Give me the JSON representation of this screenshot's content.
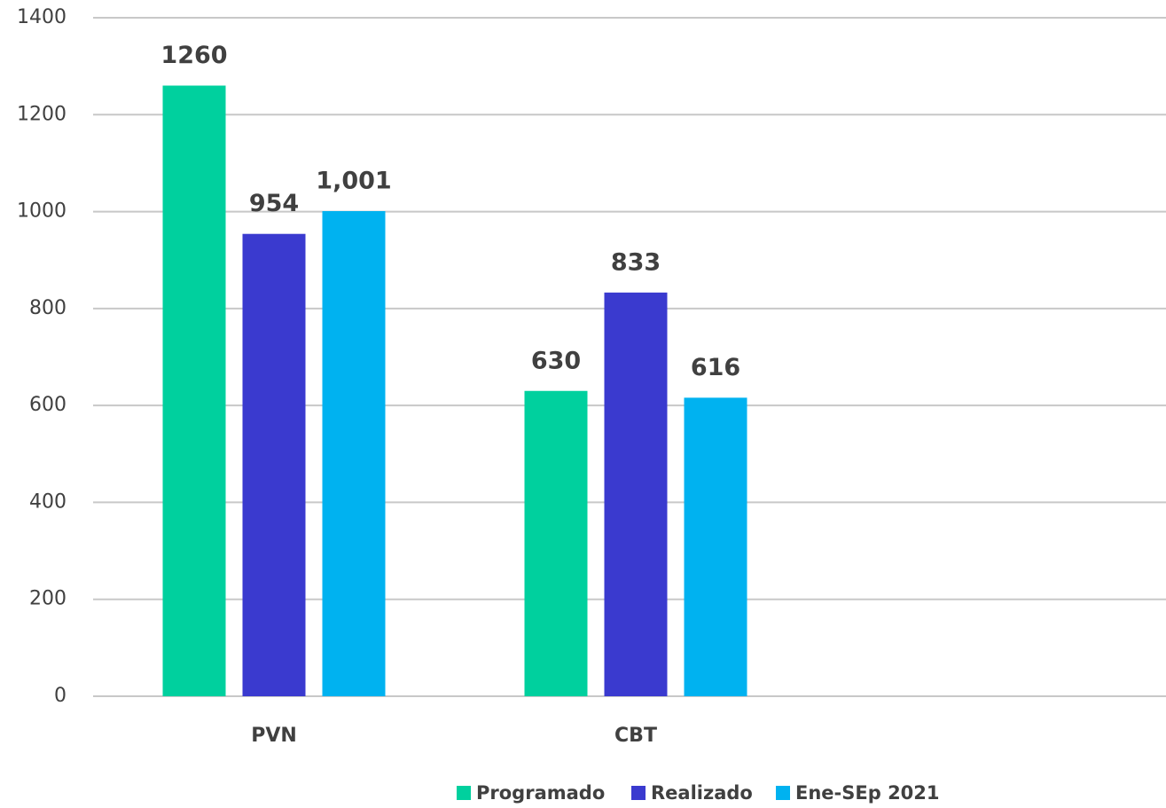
{
  "chart_data": {
    "type": "bar",
    "categories": [
      "PVN",
      "CBT"
    ],
    "series": [
      {
        "name": "Programado",
        "color": "#00d09e",
        "values": [
          1260,
          630
        ],
        "value_labels": [
          "1260",
          "630"
        ]
      },
      {
        "name": "Realizado",
        "color": "#3a3acf",
        "values": [
          954,
          833
        ],
        "value_labels": [
          "954",
          "833"
        ]
      },
      {
        "name": "Ene-SEp 2021",
        "color": "#00b2f0",
        "values": [
          1001,
          616
        ],
        "value_labels": [
          "1,001",
          "616"
        ]
      }
    ],
    "ylim": [
      0,
      1400
    ],
    "yticks": [
      0,
      200,
      400,
      600,
      800,
      1000,
      1200,
      1400
    ],
    "grid": true,
    "legend": "bottom"
  }
}
